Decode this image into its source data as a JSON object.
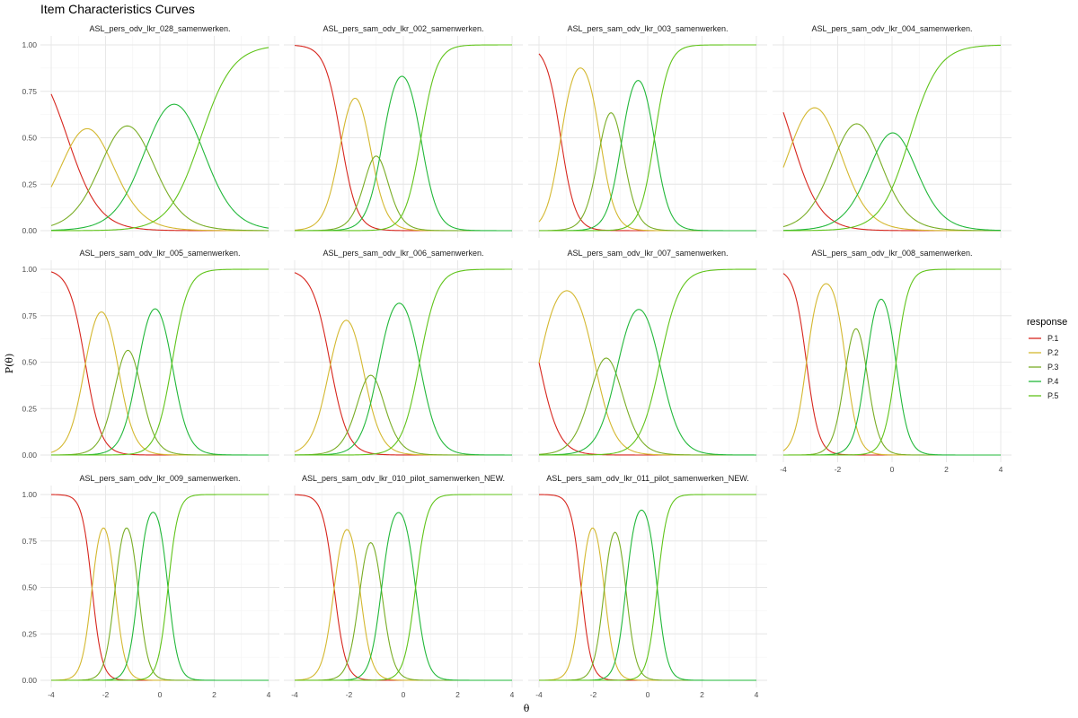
{
  "chart_data": {
    "type": "line",
    "title": "Item Characteristics Curves",
    "xlabel": "θ",
    "ylabel": "P(θ)",
    "xlim": [
      -4,
      4
    ],
    "ylim": [
      0,
      1
    ],
    "x_ticks": [
      -4,
      -2,
      0,
      2,
      4
    ],
    "y_ticks": [
      0.0,
      0.25,
      0.5,
      0.75,
      1.0
    ],
    "y_tick_labels": [
      "0.00",
      "0.25",
      "0.50",
      "0.75",
      "1.00"
    ],
    "x_tick_labels": [
      "-4",
      "-2",
      "0",
      "2",
      "4"
    ],
    "grid": true,
    "legend": {
      "title": "response",
      "position": "right",
      "entries": [
        {
          "label": "P.1",
          "color": "#d7261e"
        },
        {
          "label": "P.2",
          "color": "#d4b830"
        },
        {
          "label": "P.3",
          "color": "#79ad25"
        },
        {
          "label": "P.4",
          "color": "#22b83a"
        },
        {
          "label": "P.5",
          "color": "#60c41a"
        }
      ]
    },
    "panels": [
      {
        "title": "ASL_pers_odv_lkr_028_samenwerken.",
        "a": 1.0,
        "b": [
          -3.4,
          -1.95,
          -0.45,
          1.5
        ]
      },
      {
        "title": "ASL_pers_sam_odv_lkr_002_samenwerken.",
        "a": 2.0,
        "b": [
          -2.3,
          -1.25,
          -0.75,
          0.65
        ]
      },
      {
        "title": "ASL_pers_sam_odv_lkr_003_samenwerken.",
        "a": 2.2,
        "b": [
          -3.2,
          -1.75,
          -0.95,
          0.25
        ]
      },
      {
        "title": "ASL_pers_sam_odv_lkr_004_samenwerken.",
        "a": 1.1,
        "b": [
          -3.7,
          -2.0,
          -0.6,
          0.65
        ]
      },
      {
        "title": "ASL_pers_sam_odv_lkr_005_samenwerken.",
        "a": 2.0,
        "b": [
          -2.75,
          -1.55,
          -0.8,
          0.45
        ]
      },
      {
        "title": "ASL_pers_sam_odv_lkr_006_samenwerken.",
        "a": 1.8,
        "b": [
          -2.7,
          -1.5,
          -0.9,
          0.6
        ]
      },
      {
        "title": "ASL_pers_sam_odv_lkr_007_samenwerken.",
        "a": 1.6,
        "b": [
          -4.0,
          -1.95,
          -1.1,
          0.45
        ]
      },
      {
        "title": "ASL_pers_sam_odv_lkr_008_samenwerken.",
        "a": 2.6,
        "b": [
          -3.15,
          -1.7,
          -0.95,
          0.15
        ]
      },
      {
        "title": "ASL_pers_sam_odv_lkr_009_samenwerken.",
        "a": 3.2,
        "b": [
          -2.5,
          -1.65,
          -0.8,
          0.3
        ]
      },
      {
        "title": "ASL_pers_sam_odv_lkr_010_pilot_samenwerken_NEW.",
        "a": 2.8,
        "b": [
          -2.55,
          -1.6,
          -0.8,
          0.45
        ]
      },
      {
        "title": "ASL_pers_sam_odv_lkr_011_pilot_samenwerken_NEW.",
        "a": 3.2,
        "b": [
          -2.45,
          -1.6,
          -0.8,
          0.35
        ]
      }
    ]
  }
}
